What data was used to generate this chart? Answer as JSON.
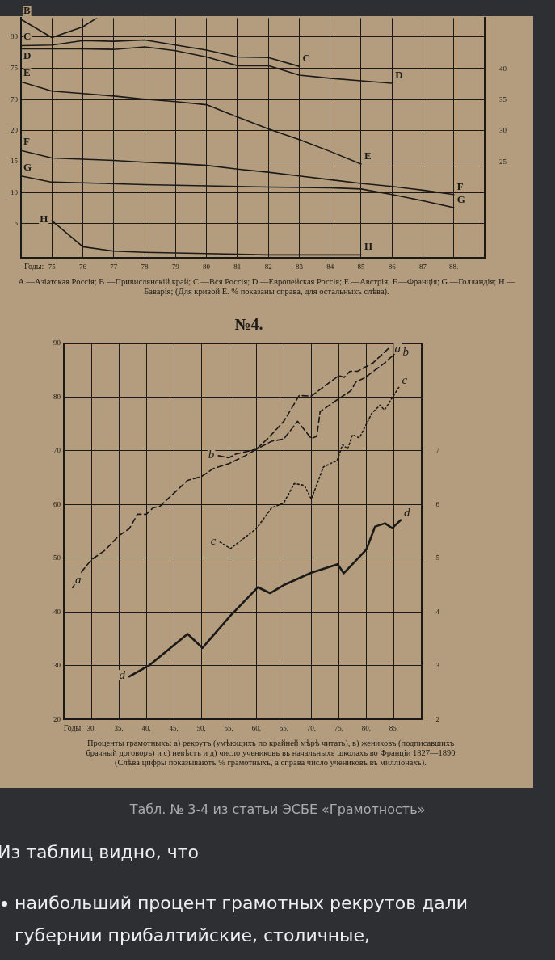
{
  "chart_data": [
    {
      "type": "line",
      "xlim": [
        74,
        89
      ],
      "tick_labels": "y",
      "xticks": [
        75,
        76,
        77,
        78,
        79,
        80,
        81,
        82,
        83,
        84,
        85,
        86,
        87,
        88
      ],
      "ylim": [
        67.5,
        83
      ],
      "yticks": [
        70,
        75,
        80
      ],
      "y2lim": [
        32.5,
        48.2
      ],
      "y2ticks": [
        35,
        40
      ],
      "grid": true,
      "marker": "none",
      "line_style": "solid",
      "series": [
        {
          "name": "B",
          "color": "#1c1a17",
          "x": [
            74,
            75,
            76,
            76.45
          ],
          "values": [
            82.8,
            79.9,
            81.6,
            83
          ]
        },
        {
          "name": "C",
          "color": "#1c1a17",
          "x": [
            74,
            75,
            76,
            77,
            78,
            80,
            81,
            82,
            83
          ],
          "values": [
            78.6,
            78.7,
            79.4,
            79.3,
            79.5,
            77.9,
            76.8,
            76.7,
            75.3
          ]
        },
        {
          "name": "D",
          "color": "#1c1a17",
          "x": [
            74,
            76,
            77,
            78,
            79,
            80,
            81,
            82,
            83,
            84,
            85,
            86
          ],
          "values": [
            78.1,
            78.1,
            78.0,
            78.4,
            77.8,
            76.8,
            75.4,
            75.4,
            73.9,
            73.4,
            73.0,
            72.6
          ]
        },
        {
          "name": "E",
          "color": "#1c1a17",
          "axis": "y2",
          "x": [
            74,
            75,
            76,
            77,
            78,
            79,
            80,
            80.85
          ],
          "values": [
            37.9,
            36.4,
            36.0,
            35.6,
            35.1,
            34.7,
            34.2,
            32.5
          ]
        }
      ]
    },
    {
      "type": "line",
      "xlabel": "Годы:",
      "xlim": [
        74,
        89
      ],
      "xticks": [
        75,
        76,
        77,
        78,
        79,
        80,
        81,
        82,
        83,
        84,
        85,
        86,
        87,
        {
          "value": 88,
          "label": "88."
        }
      ],
      "ylim": [
        -0.5,
        22.5
      ],
      "yticks": [
        5,
        10,
        15,
        20
      ],
      "y2lim": [
        9.7,
        32.5
      ],
      "y2ticks": [
        25,
        30
      ],
      "grid": true,
      "marker": "none",
      "line_style": "solid",
      "series": [
        {
          "name": "E",
          "color": "#1c1a17",
          "axis": "y2",
          "x": [
            80.85,
            81,
            82,
            83,
            84,
            85
          ],
          "values": [
            32.5,
            32.2,
            30.3,
            28.6,
            26.7,
            24.7
          ]
        },
        {
          "name": "F",
          "color": "#1c1a17",
          "x": [
            74,
            75,
            76,
            77,
            78,
            79,
            80,
            81,
            82,
            83,
            84,
            85,
            86,
            87,
            88
          ],
          "values": [
            16.8,
            15.6,
            15.4,
            15.2,
            14.9,
            14.7,
            14.4,
            13.8,
            13.3,
            12.7,
            12.1,
            11.5,
            11.0,
            10.4,
            9.7
          ]
        },
        {
          "name": "G",
          "color": "#1c1a17",
          "x": [
            74,
            75,
            76,
            78,
            80,
            82,
            84,
            85,
            86,
            87,
            88
          ],
          "values": [
            12.7,
            11.7,
            11.6,
            11.3,
            11.1,
            10.9,
            10.8,
            10.6,
            9.7,
            8.7,
            7.6
          ]
        },
        {
          "name": "H",
          "color": "#1c1a17",
          "x": [
            75,
            76,
            77,
            78,
            80,
            82,
            85
          ],
          "values": [
            5.5,
            1.3,
            0.6,
            0.4,
            0.2,
            0.0,
            0.0
          ]
        }
      ],
      "annotations": [
        "A.—Азіатская Россія; B.—Привислянскій край; C.—Вся Россія; D.—Европейская Россія; E.—Австрія; F.—Франція; G.—Голландія; H.—Баварія; (Для кривой E. % показаны справа, для остальныхъ слѣва)."
      ]
    },
    {
      "type": "line",
      "title": "№4.",
      "xlabel": "Годы:",
      "xlim": [
        25,
        90
      ],
      "xticks": [
        {
          "value": 30,
          "label": "30,"
        },
        {
          "value": 35,
          "label": "35,"
        },
        {
          "value": 40,
          "label": "40,"
        },
        {
          "value": 45,
          "label": "45,"
        },
        {
          "value": 50,
          "label": "50,"
        },
        {
          "value": 55,
          "label": "55,"
        },
        {
          "value": 60,
          "label": "60,"
        },
        {
          "value": 65,
          "label": "65,"
        },
        {
          "value": 70,
          "label": "70,"
        },
        {
          "value": 75,
          "label": "75,"
        },
        {
          "value": 80,
          "label": "80,"
        },
        {
          "value": 85,
          "label": "85."
        }
      ],
      "ylim": [
        20,
        90
      ],
      "yticks": [
        20,
        30,
        40,
        50,
        60,
        70,
        80,
        90
      ],
      "y2lim": [
        2,
        9
      ],
      "y2ticks": [
        2,
        3,
        4,
        5,
        6,
        7
      ],
      "grid": true,
      "marker": "none",
      "series": [
        {
          "name": "a",
          "color": "#1c1a17",
          "line_style": "dashed",
          "x": [
            26.6,
            28.4,
            30,
            32.5,
            35,
            36.9,
            38.4,
            40,
            41.25,
            42.5,
            45,
            47.5,
            50,
            52.2,
            55,
            58,
            60,
            62.2,
            65,
            67.8,
            70,
            75,
            76,
            77,
            78.4,
            81.25,
            84.4
          ],
          "values": [
            44.5,
            47.7,
            49.7,
            51.5,
            54.2,
            55.5,
            58.2,
            58.2,
            59.4,
            59.7,
            62.1,
            64.5,
            65.2,
            66.7,
            67.6,
            69.1,
            70.3,
            72.4,
            75.5,
            80.3,
            80.2,
            84,
            83.7,
            84.8,
            84.8,
            86.4,
            89.4
          ]
        },
        {
          "name": "b",
          "color": "#1c1a17",
          "line_style": "dashed",
          "x": [
            53.1,
            55,
            56.25,
            60,
            62.8,
            65,
            67.5,
            70,
            71,
            71.6,
            74.7,
            77.2,
            78.1,
            79.7,
            83.4,
            85.9
          ],
          "values": [
            69.1,
            68.7,
            69.4,
            70.3,
            71.8,
            72.2,
            75.5,
            72.3,
            72.7,
            77.3,
            79.5,
            81.2,
            82.8,
            83.6,
            86.4,
            88.8
          ]
        },
        {
          "name": "c",
          "color": "#1c1a17",
          "line_style": "dotted",
          "x": [
            53.4,
            55.3,
            60,
            62.8,
            65,
            66.9,
            68.75,
            70,
            72.2,
            74.7,
            75.7,
            76.6,
            77.5,
            78.75,
            81,
            82.5,
            83.3,
            85.9
          ],
          "values": [
            53,
            51.8,
            55.5,
            59.4,
            60.3,
            63.9,
            63.6,
            61,
            67,
            68.2,
            71.2,
            70.3,
            73,
            72.4,
            77,
            78.5,
            77.6,
            81.8
          ]
        },
        {
          "name": "d",
          "color": "#1c1a17",
          "line_style": "solid",
          "axis": "y2",
          "x": [
            36.9,
            40.6,
            47.5,
            50.2,
            55.3,
            60.3,
            62.5,
            65,
            70,
            74.8,
            75.9,
            77.2,
            80,
            81.6,
            83.4,
            84.7,
            86.25
          ],
          "values": [
            2.8,
            3.01,
            3.59,
            3.33,
            3.93,
            4.46,
            4.35,
            4.5,
            4.73,
            4.89,
            4.72,
            4.86,
            5.16,
            5.59,
            5.65,
            5.56,
            5.71
          ]
        }
      ],
      "annotations": [
        "Проценты грамотныхъ: а) рекрутъ (умѣющихъ по крайней мѣрѣ читать), в) жениховъ (подписавшихъ брачный договоръ) и с) невѣстъ и д) число учениковъ въ начальныхъ школахъ во Франціи 1827—1890 (Слѣва цифры показываютъ % грамотныхъ, а справа число учениковъ въ милліонахъ).",
        "Табл. № 3-4 из статьи ЭСБЕ «Грамотность»",
        "Из таблиц видно, что",
        "наибольший процент грамотных рекрутов дали губернии прибалтийские, столичные,"
      ]
    }
  ]
}
